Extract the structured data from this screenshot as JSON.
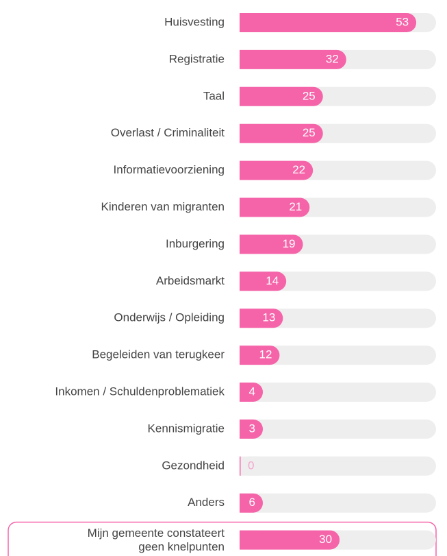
{
  "chart_data": {
    "type": "bar",
    "orientation": "horizontal",
    "categories": [
      "Huisvesting",
      "Registratie",
      "Taal",
      "Overlast / Criminaliteit",
      "Informatievoorziening",
      "Kinderen van migranten",
      "Inburgering",
      "Arbeidsmarkt",
      "Onderwijs / Opleiding",
      "Begeleiden van terugkeer",
      "Inkomen / Schuldenproblematiek",
      "Kennismigratie",
      "Gezondheid",
      "Anders",
      [
        "Mijn gemeente constateert",
        "geen knelpunten"
      ]
    ],
    "values": [
      53,
      32,
      25,
      25,
      22,
      21,
      19,
      14,
      13,
      12,
      4,
      3,
      0,
      6,
      30
    ],
    "color": "#f564a9",
    "track_color": "#eeeeee"
  }
}
